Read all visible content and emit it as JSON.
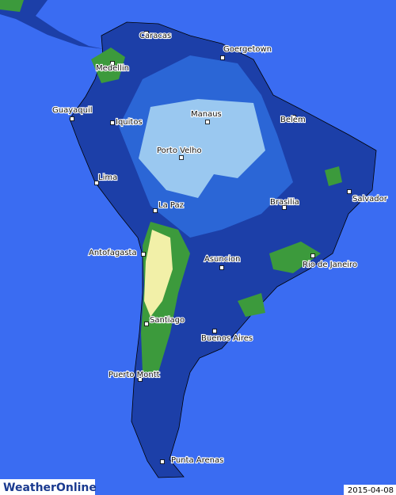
{
  "logo": "WeatherOnline",
  "date": "2015-04-08",
  "cities": [
    {
      "name": "Caracas"
    },
    {
      "name": "Goergetown"
    },
    {
      "name": "Medellin"
    },
    {
      "name": "Guayaquil"
    },
    {
      "name": "Iquitos"
    },
    {
      "name": "Manaus"
    },
    {
      "name": "Belem"
    },
    {
      "name": "Porto Velho"
    },
    {
      "name": "Salvador"
    },
    {
      "name": "Lima"
    },
    {
      "name": "La Paz"
    },
    {
      "name": "Brasilia"
    },
    {
      "name": "Antofagasta"
    },
    {
      "name": "Asuncion"
    },
    {
      "name": "Rio de Janeiro"
    },
    {
      "name": "Santiago"
    },
    {
      "name": "Buenos Aires"
    },
    {
      "name": "Puerto Montt"
    },
    {
      "name": "Punta Arenas"
    }
  ]
}
